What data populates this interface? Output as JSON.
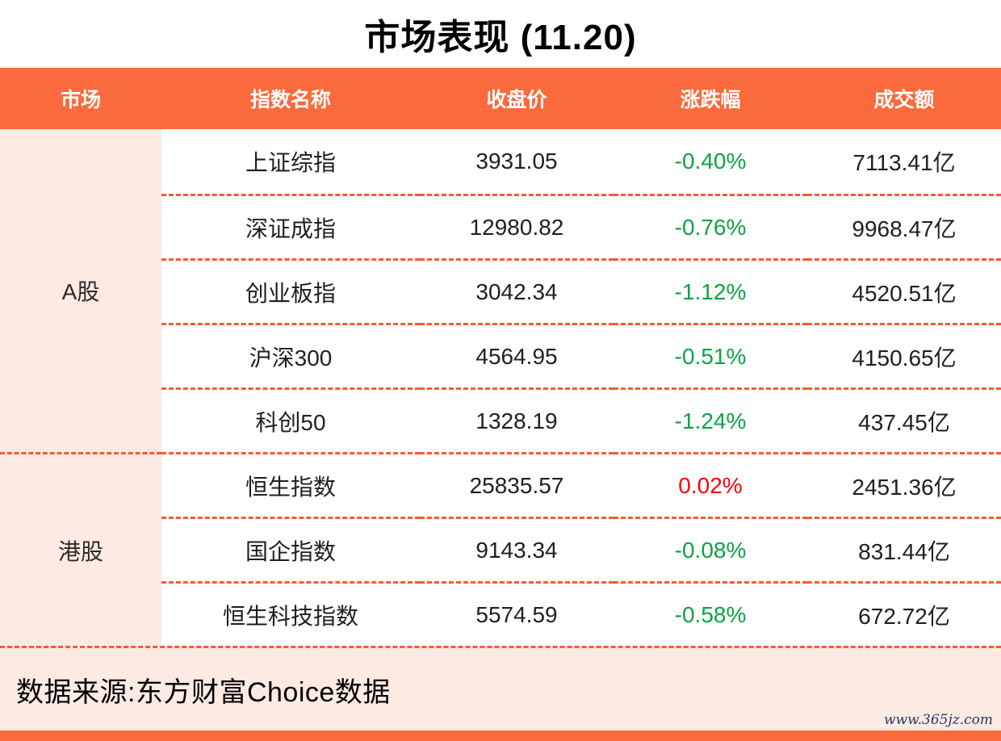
{
  "title": "市场表现 (11.20)",
  "colors": {
    "accent_orange": "#fa6a3c",
    "divider_dash_orange": "#f75b2f",
    "row_group_pink": "#fdeae3",
    "change_down_green": "#0da342",
    "change_up_red": "#fe0000",
    "watermark_blue": "#24386b"
  },
  "table": {
    "headers": [
      "市场",
      "指数名称",
      "收盘价",
      "涨跌幅",
      "成交额"
    ],
    "groups": [
      {
        "label": "A股",
        "rowspan": 5
      },
      {
        "label": "港股",
        "rowspan": 3
      }
    ],
    "rows": [
      {
        "name": "上证综指",
        "close": "3931.05",
        "change": "-0.40%",
        "change_color": "#0da342",
        "turnover": "7113.41亿"
      },
      {
        "name": "深证成指",
        "close": "12980.82",
        "change": "-0.76%",
        "change_color": "#0da342",
        "turnover": "9968.47亿"
      },
      {
        "name": "创业板指",
        "close": "3042.34",
        "change": "-1.12%",
        "change_color": "#0da342",
        "turnover": "4520.51亿"
      },
      {
        "name": "沪深300",
        "close": "4564.95",
        "change": "-0.51%",
        "change_color": "#0da342",
        "turnover": "4150.65亿"
      },
      {
        "name": "科创50",
        "close": "1328.19",
        "change": "-1.24%",
        "change_color": "#0da342",
        "turnover": "437.45亿"
      },
      {
        "name": "恒生指数",
        "close": "25835.57",
        "change": "0.02%",
        "change_color": "#fe0000",
        "turnover": "2451.36亿"
      },
      {
        "name": "国企指数",
        "close": "9143.34",
        "change": "-0.08%",
        "change_color": "#0da342",
        "turnover": "831.44亿"
      },
      {
        "name": "恒生科技指数",
        "close": "5574.59",
        "change": "-0.58%",
        "change_color": "#0da342",
        "turnover": "672.72亿"
      }
    ]
  },
  "footer": {
    "source": "数据来源:东方财富Choice数据",
    "watermark": "www.365jz.com"
  },
  "chart_data": {
    "type": "table",
    "title": "市场表现 (11.20)",
    "columns": [
      "市场",
      "指数名称",
      "收盘价",
      "涨跌幅",
      "成交额"
    ],
    "rows": [
      [
        "A股",
        "上证综指",
        3931.05,
        "-0.40%",
        "7113.41亿"
      ],
      [
        "A股",
        "深证成指",
        12980.82,
        "-0.76%",
        "9968.47亿"
      ],
      [
        "A股",
        "创业板指",
        3042.34,
        "-1.12%",
        "4520.51亿"
      ],
      [
        "A股",
        "沪深300",
        4564.95,
        "-0.51%",
        "4150.65亿"
      ],
      [
        "A股",
        "科创50",
        1328.19,
        "-1.24%",
        "437.45亿"
      ],
      [
        "港股",
        "恒生指数",
        25835.57,
        "0.02%",
        "2451.36亿"
      ],
      [
        "港股",
        "国企指数",
        9143.34,
        "-0.08%",
        "831.44亿"
      ],
      [
        "港股",
        "恒生科技指数",
        5574.59,
        "-0.58%",
        "672.72亿"
      ]
    ],
    "notes": "negative changes shown in green, positive in red (CN convention)"
  }
}
